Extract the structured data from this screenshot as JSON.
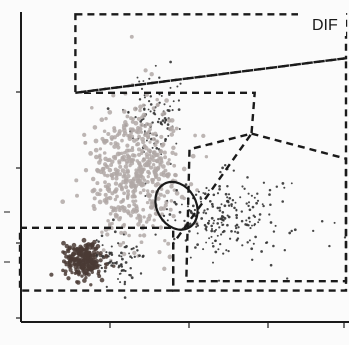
{
  "panel_label": "DIF",
  "colors": {
    "ink": "#1a1a1a",
    "neutrophil": "#b0a8a6",
    "lymphocyte": "#4a3b35",
    "cluster_dots": "#333333"
  },
  "chart_data": {
    "type": "scatter",
    "title": "DIF",
    "xlabel": "",
    "ylabel": "",
    "xlim": [
      0,
      100
    ],
    "ylim": [
      0,
      100
    ],
    "grid": false,
    "legend": "none",
    "series": [
      {
        "center": [
          41,
          65
        ],
        "spread": [
          4,
          7
        ],
        "count": 110,
        "color": "cluster_dots"
      },
      {
        "center": [
          36,
          48
        ],
        "spread": [
          7,
          11
        ],
        "count": 520,
        "color": "neutrophil"
      },
      {
        "center": [
          60,
          33
        ],
        "spread": [
          8,
          6
        ],
        "count": 190,
        "color": "cluster_dots"
      },
      {
        "center": [
          20,
          20
        ],
        "spread": [
          3,
          3
        ],
        "count": 230,
        "color": "lymphocyte"
      },
      {
        "center": [
          30,
          20
        ],
        "spread": [
          4,
          4
        ],
        "count": 70,
        "color": "cluster_dots"
      },
      {
        "center": [
          75,
          30
        ],
        "spread": [
          10,
          8
        ],
        "count": 35,
        "color": "cluster_dots"
      }
    ],
    "gates": [
      {
        "name": "upper",
        "points": [
          [
            17,
            98
          ],
          [
            100,
            98
          ],
          [
            100,
            84
          ],
          [
            17,
            73
          ]
        ]
      },
      {
        "name": "middle",
        "points": [
          [
            17,
            73
          ],
          [
            100,
            84
          ],
          [
            100,
            13
          ],
          [
            51,
            13
          ],
          [
            52,
            55
          ],
          [
            71,
            60
          ],
          [
            72,
            73
          ]
        ]
      },
      {
        "name": "right",
        "points": [
          [
            71,
            60
          ],
          [
            100,
            52
          ],
          [
            100,
            10
          ],
          [
            47,
            10
          ],
          [
            47,
            25
          ],
          [
            56,
            38
          ]
        ]
      },
      {
        "name": "lower-left",
        "points": [
          [
            0,
            30
          ],
          [
            47,
            30
          ],
          [
            47,
            10
          ],
          [
            0,
            10
          ]
        ]
      },
      {
        "name": "ellipse",
        "ellipse": {
          "cx": 48,
          "cy": 37,
          "rx": 6,
          "ry": 8,
          "rotate": -30
        }
      }
    ]
  }
}
